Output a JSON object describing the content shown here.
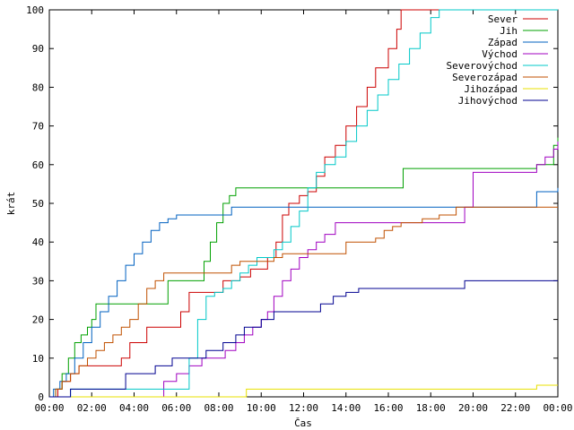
{
  "chart_data": {
    "type": "line",
    "step": true,
    "xlabel": "Čas",
    "ylabel": "krát",
    "xlim": [
      0,
      24
    ],
    "ylim": [
      0,
      100
    ],
    "grid": false,
    "legend_position": "top-right",
    "x_ticks": [
      "00:00",
      "02:00",
      "04:00",
      "06:00",
      "08:00",
      "10:00",
      "12:00",
      "14:00",
      "16:00",
      "18:00",
      "20:00",
      "22:00",
      "00:00"
    ],
    "y_ticks": [
      0,
      10,
      20,
      30,
      40,
      50,
      60,
      70,
      80,
      90,
      100
    ],
    "series": [
      {
        "name": "Sever",
        "color": "#cc0000",
        "x": [
          0,
          0.4,
          0.6,
          1.0,
          1.4,
          2.0,
          3.4,
          3.8,
          4.6,
          5.3,
          6.2,
          6.6,
          7.8,
          8.2,
          9.0,
          9.5,
          10.3,
          10.7,
          11.0,
          11.3,
          11.8,
          12.2,
          12.6,
          13.0,
          13.5,
          14.0,
          14.5,
          15.0,
          15.4,
          16.0,
          16.4,
          16.6,
          24
        ],
        "y": [
          0,
          2,
          4,
          6,
          8,
          8,
          10,
          14,
          18,
          18,
          22,
          27,
          27,
          30,
          31,
          33,
          36,
          40,
          47,
          50,
          52,
          53,
          57,
          62,
          65,
          70,
          75,
          80,
          85,
          90,
          95,
          100,
          100
        ]
      },
      {
        "name": "Jih",
        "color": "#00a000",
        "x": [
          0,
          0.3,
          0.6,
          0.9,
          1.2,
          1.5,
          1.8,
          2.0,
          2.2,
          4.6,
          5.0,
          5.6,
          6.8,
          7.3,
          7.6,
          7.9,
          8.2,
          8.5,
          8.8,
          12.0,
          16.7,
          22.5,
          23.0,
          23.8,
          24
        ],
        "y": [
          0,
          2,
          6,
          10,
          14,
          16,
          18,
          20,
          24,
          24,
          24,
          30,
          30,
          35,
          40,
          45,
          50,
          52,
          54,
          54,
          59,
          59,
          60,
          65,
          67
        ]
      },
      {
        "name": "Západ",
        "color": "#0060c0",
        "x": [
          0,
          0.2,
          0.5,
          0.8,
          1.2,
          1.6,
          2.0,
          2.4,
          2.8,
          3.2,
          3.6,
          4.0,
          4.4,
          4.8,
          5.2,
          5.6,
          6.0,
          6.6,
          8.6,
          22.9,
          23.0,
          24
        ],
        "y": [
          0,
          2,
          4,
          6,
          10,
          14,
          18,
          22,
          26,
          30,
          34,
          37,
          40,
          43,
          45,
          46,
          47,
          47,
          49,
          49,
          53,
          54
        ]
      },
      {
        "name": "Východ",
        "color": "#a000c0",
        "x": [
          0,
          5.1,
          5.4,
          6.0,
          6.6,
          7.2,
          7.8,
          8.3,
          8.8,
          9.2,
          9.6,
          10.0,
          10.3,
          10.6,
          11.0,
          11.4,
          11.8,
          12.2,
          12.6,
          13.0,
          13.5,
          14.0,
          14.6,
          15.0,
          16.0,
          19.3,
          19.6,
          20.0,
          20.4,
          22.5,
          23.0,
          23.4,
          23.8,
          24
        ],
        "y": [
          0,
          0,
          4,
          6,
          8,
          10,
          10,
          12,
          14,
          16,
          18,
          20,
          22,
          26,
          30,
          33,
          36,
          38,
          40,
          42,
          45,
          45,
          45,
          45,
          45,
          45,
          49,
          58,
          58,
          58,
          60,
          62,
          64,
          66
        ]
      },
      {
        "name": "Severovýchod",
        "color": "#00c8c8",
        "x": [
          0,
          1.0,
          2.0,
          3.0,
          5.0,
          6.2,
          6.6,
          7.0,
          7.4,
          7.8,
          8.2,
          8.6,
          9.0,
          9.4,
          9.8,
          10.2,
          10.6,
          11.0,
          11.4,
          11.8,
          12.2,
          12.6,
          13.0,
          13.5,
          14.0,
          14.5,
          15.0,
          15.5,
          16.0,
          16.5,
          17.0,
          17.5,
          18.0,
          18.4,
          24
        ],
        "y": [
          0,
          2,
          2,
          2,
          2,
          2,
          10,
          20,
          26,
          27,
          28,
          30,
          32,
          34,
          36,
          36,
          38,
          40,
          44,
          48,
          54,
          58,
          60,
          62,
          66,
          70,
          74,
          78,
          82,
          86,
          90,
          94,
          98,
          100,
          100
        ]
      },
      {
        "name": "Severozápad",
        "color": "#c05000",
        "x": [
          0,
          0.3,
          0.6,
          1.0,
          1.4,
          1.8,
          2.2,
          2.6,
          3.0,
          3.4,
          3.8,
          4.2,
          4.6,
          5.0,
          5.4,
          5.8,
          6.6,
          7.6,
          8.2,
          8.6,
          9.0,
          9.5,
          10.0,
          10.6,
          11.0,
          11.4,
          11.8,
          12.4,
          13.0,
          14.0,
          15.4,
          15.8,
          16.2,
          16.6,
          17.0,
          17.6,
          18.4,
          19.2,
          24
        ],
        "y": [
          0,
          2,
          4,
          6,
          8,
          10,
          12,
          14,
          16,
          18,
          20,
          24,
          28,
          30,
          32,
          32,
          32,
          32,
          32,
          34,
          35,
          35,
          35,
          36,
          37,
          37,
          37,
          37,
          37,
          40,
          41,
          43,
          44,
          45,
          45,
          46,
          47,
          49,
          49
        ]
      },
      {
        "name": "Jihozápad",
        "color": "#e8e000",
        "x": [
          0,
          9.3,
          23.0,
          24
        ],
        "y": [
          0,
          2,
          3,
          3
        ]
      },
      {
        "name": "Jihovýchod",
        "color": "#000090",
        "x": [
          0,
          1.0,
          3.3,
          3.6,
          5.0,
          5.8,
          6.2,
          6.8,
          7.4,
          8.2,
          8.8,
          9.2,
          10.0,
          10.6,
          11.0,
          11.6,
          12.2,
          12.8,
          13.4,
          14.0,
          14.6,
          15.0,
          19.6,
          24
        ],
        "y": [
          0,
          2,
          2,
          6,
          8,
          10,
          10,
          10,
          12,
          14,
          16,
          18,
          20,
          22,
          22,
          22,
          22,
          24,
          26,
          27,
          28,
          28,
          30,
          30
        ]
      }
    ]
  }
}
